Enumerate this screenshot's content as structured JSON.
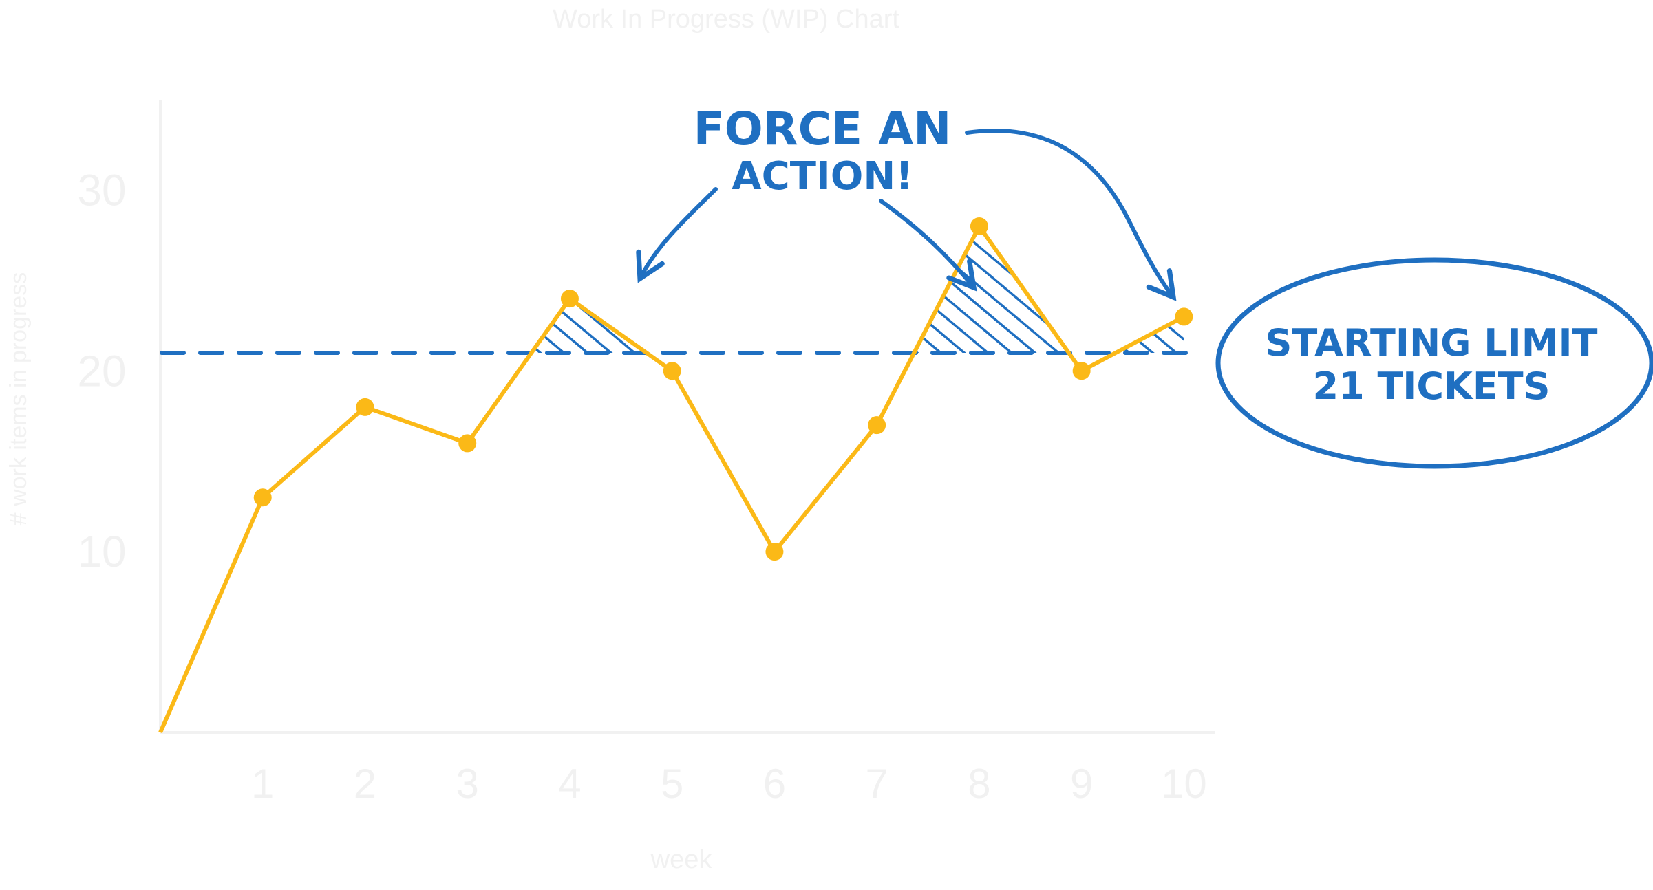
{
  "chart_data": {
    "type": "line",
    "title": "Work In Progress (WIP) Chart",
    "xlabel": "week",
    "ylabel": "# work items in progress",
    "x": [
      0,
      1,
      2,
      3,
      4,
      5,
      6,
      7,
      8,
      9,
      10
    ],
    "x_tick_labels": [
      "1",
      "2",
      "3",
      "4",
      "5",
      "6",
      "7",
      "8",
      "9",
      "10"
    ],
    "y_tick_labels": [
      "10",
      "20",
      "30"
    ],
    "y_tick_values": [
      10,
      20,
      30
    ],
    "ylim": [
      0,
      35
    ],
    "xlim": [
      0,
      10.3
    ],
    "series": [
      {
        "values": [
          0,
          13,
          18,
          16,
          24,
          20,
          10,
          17,
          28,
          20,
          23
        ],
        "color": "#fbb917"
      }
    ],
    "limit_line": {
      "value": 21,
      "color": "#1f6fc1",
      "style": "dashed"
    },
    "grid": false,
    "legend": "none"
  },
  "annotations": {
    "force_line1": "FORCE AN",
    "force_line2": "ACTION!",
    "limit_line1": "STARTING LIMIT",
    "limit_line2": "21 TICKETS"
  }
}
